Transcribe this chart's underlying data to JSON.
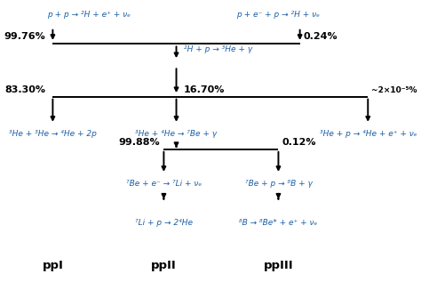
{
  "bg_color": "#ffffff",
  "line_color": "#000000",
  "text_color": "#1a5fa8",
  "black_text_color": "#000000",
  "reaction_texts": {
    "r1": "p + p → ²H + e⁺ + νₑ",
    "r2": "p + e⁻ + p → ²H + νₑ",
    "r3": "²H + p → ³He + γ",
    "r4": "³He + ³He → ⁴He + 2p",
    "r5": "³He + ⁴He → ⁷Be + γ",
    "r6": "³He + p → ⁴He + e⁺ + νₑ",
    "r7": "⁷Be + e⁻ → ⁷Li + νₑ",
    "r8": "⁷Be + p → ⁸B + γ",
    "r9": "⁷Li + p → 2⁴He",
    "r10": "⁸B → ⁸Be* + e⁺ + νₑ"
  },
  "branch_labels": {
    "pct_left1": "99.76%",
    "pct_right1": "0.24%",
    "pct_left2": "83.30%",
    "pct_mid2": "16.70%",
    "pct_right2": "~2×10⁻⁵%",
    "pct_left3": "99.88%",
    "pct_right3": "0.12%"
  },
  "chain_labels": {
    "ppI": "ppI",
    "ppII": "ppII",
    "ppIII": "ppIII"
  },
  "fontsize_reaction": 6.5,
  "fontsize_pct": 8.0,
  "fontsize_chain": 9.5,
  "lw": 1.4,
  "arrow_scale": 7
}
